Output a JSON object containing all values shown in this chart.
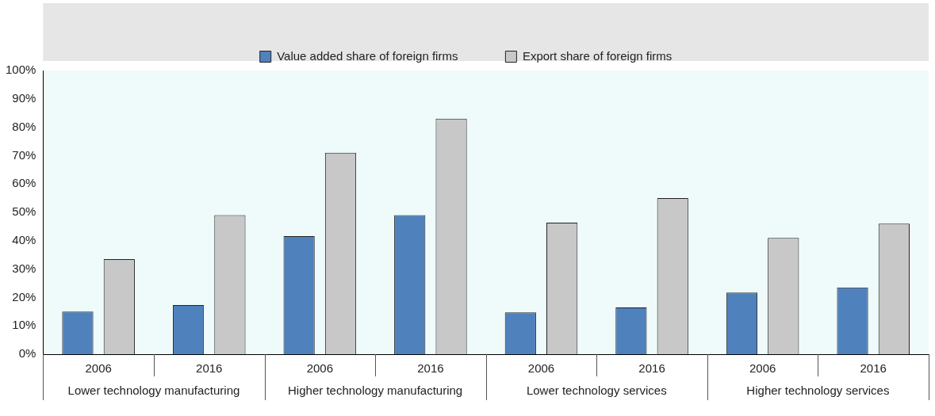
{
  "chart_data": {
    "type": "bar",
    "categories": [
      "2006",
      "2016",
      "2006",
      "2016",
      "2006",
      "2016",
      "2006",
      "2016"
    ],
    "series": [
      {
        "name": "Value added share of foreign firms",
        "color": "#4f81bd",
        "values": [
          15,
          17.3,
          41.6,
          49,
          14.7,
          16.5,
          21.7,
          23.5
        ]
      },
      {
        "name": "Export share of foreign firms",
        "color": "#c8c8c8",
        "values": [
          33.5,
          49,
          71,
          83,
          46.4,
          55,
          41,
          46
        ]
      }
    ],
    "ylim": [
      0,
      100
    ],
    "yticks": [
      {
        "value": 0,
        "label": "0%"
      },
      {
        "value": 10,
        "label": "10%"
      },
      {
        "value": 20,
        "label": "20%"
      },
      {
        "value": 30,
        "label": "30%"
      },
      {
        "value": 40,
        "label": "40%"
      },
      {
        "value": 50,
        "label": "50%"
      },
      {
        "value": 60,
        "label": "60%"
      },
      {
        "value": 70,
        "label": "70%"
      },
      {
        "value": 80,
        "label": "80%"
      },
      {
        "value": 90,
        "label": "90%"
      },
      {
        "value": 100,
        "label": "100%"
      }
    ],
    "annotations": [
      "Lower technology manufacturing",
      "Higher technology manufacturing",
      "Lower technology services",
      "Higher technology services"
    ],
    "legend": "top",
    "grid": false
  }
}
